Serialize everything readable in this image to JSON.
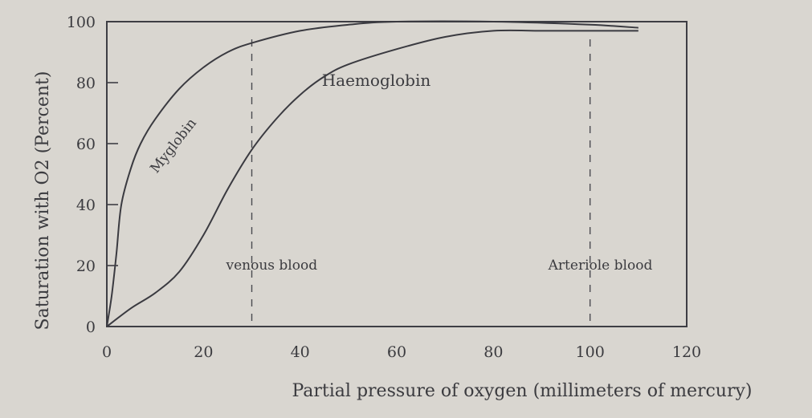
{
  "chart_data": {
    "type": "line",
    "xlabel": "Partial pressure of oxygen (millimeters of mercury)",
    "ylabel": "Saturation with O2 (Percent)",
    "xlim": [
      0,
      120
    ],
    "ylim": [
      0,
      100
    ],
    "x_ticks": [
      0,
      20,
      40,
      60,
      80,
      100,
      120
    ],
    "y_ticks": [
      0,
      20,
      40,
      60,
      80,
      100
    ],
    "grid": false,
    "series": [
      {
        "name": "Myglobin",
        "x": [
          0,
          1,
          2,
          3,
          5,
          7,
          10,
          15,
          20,
          25,
          30,
          40,
          50,
          60,
          80,
          100,
          110
        ],
        "y": [
          0,
          10,
          24,
          40,
          52,
          60,
          68,
          78,
          85,
          90,
          93,
          97,
          99,
          100,
          100,
          99,
          98
        ]
      },
      {
        "name": "Haemoglobin",
        "x": [
          0,
          5,
          10,
          15,
          20,
          25,
          30,
          35,
          40,
          45,
          50,
          60,
          70,
          80,
          90,
          100,
          110
        ],
        "y": [
          0,
          6,
          11,
          18,
          30,
          45,
          58,
          68,
          76,
          82,
          86,
          91,
          95,
          97,
          97,
          97,
          97
        ]
      }
    ],
    "reference_lines": [
      {
        "x": 30,
        "label": "venous blood"
      },
      {
        "x": 100,
        "label": "Arteriole blood"
      }
    ]
  }
}
